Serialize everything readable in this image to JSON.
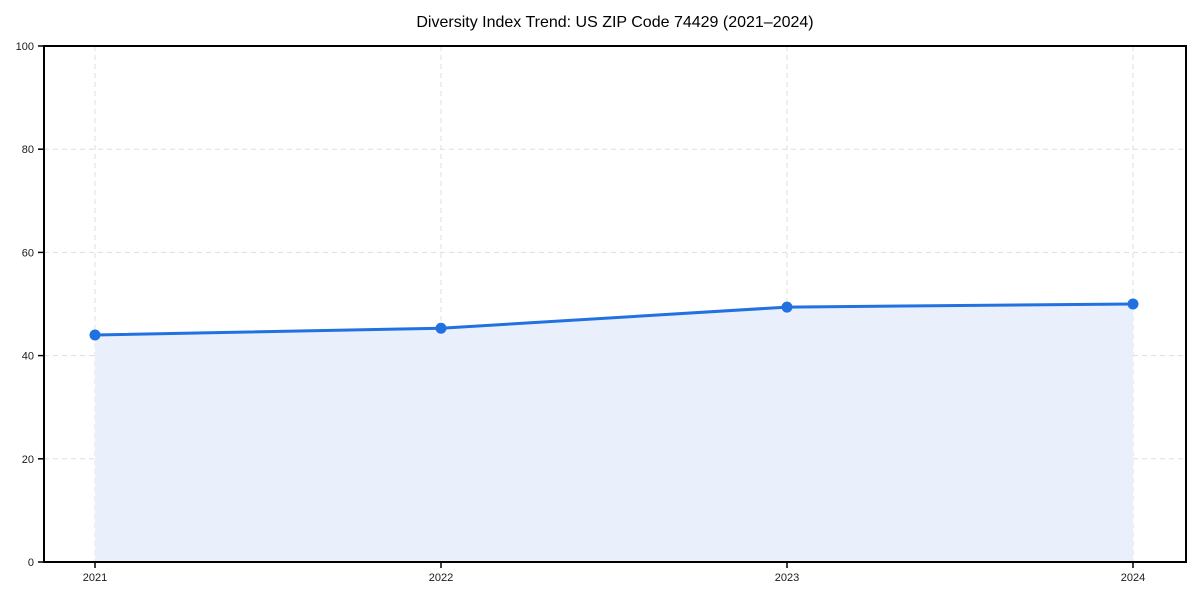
{
  "chart_data": {
    "type": "area",
    "title": "Diversity Index Trend: US ZIP Code 74429 (2021–2024)",
    "categories": [
      "2021",
      "2022",
      "2023",
      "2024"
    ],
    "values": [
      44.0,
      45.3,
      49.4,
      50.0
    ],
    "series_name": "Diversity Index",
    "xlabel": "",
    "ylabel": "",
    "ylim": [
      0,
      100
    ],
    "yticks": [
      0,
      20,
      40,
      60,
      80,
      100
    ],
    "grid": true,
    "grid_style": "dashed",
    "legend_position": "none",
    "colors": {
      "line": "#2271e0",
      "marker": "#2271e0",
      "fill": "#e9f0fc",
      "grid": "#dedede",
      "axis": "#000000",
      "text": "#1a1a1a",
      "background": "#ffffff"
    }
  }
}
